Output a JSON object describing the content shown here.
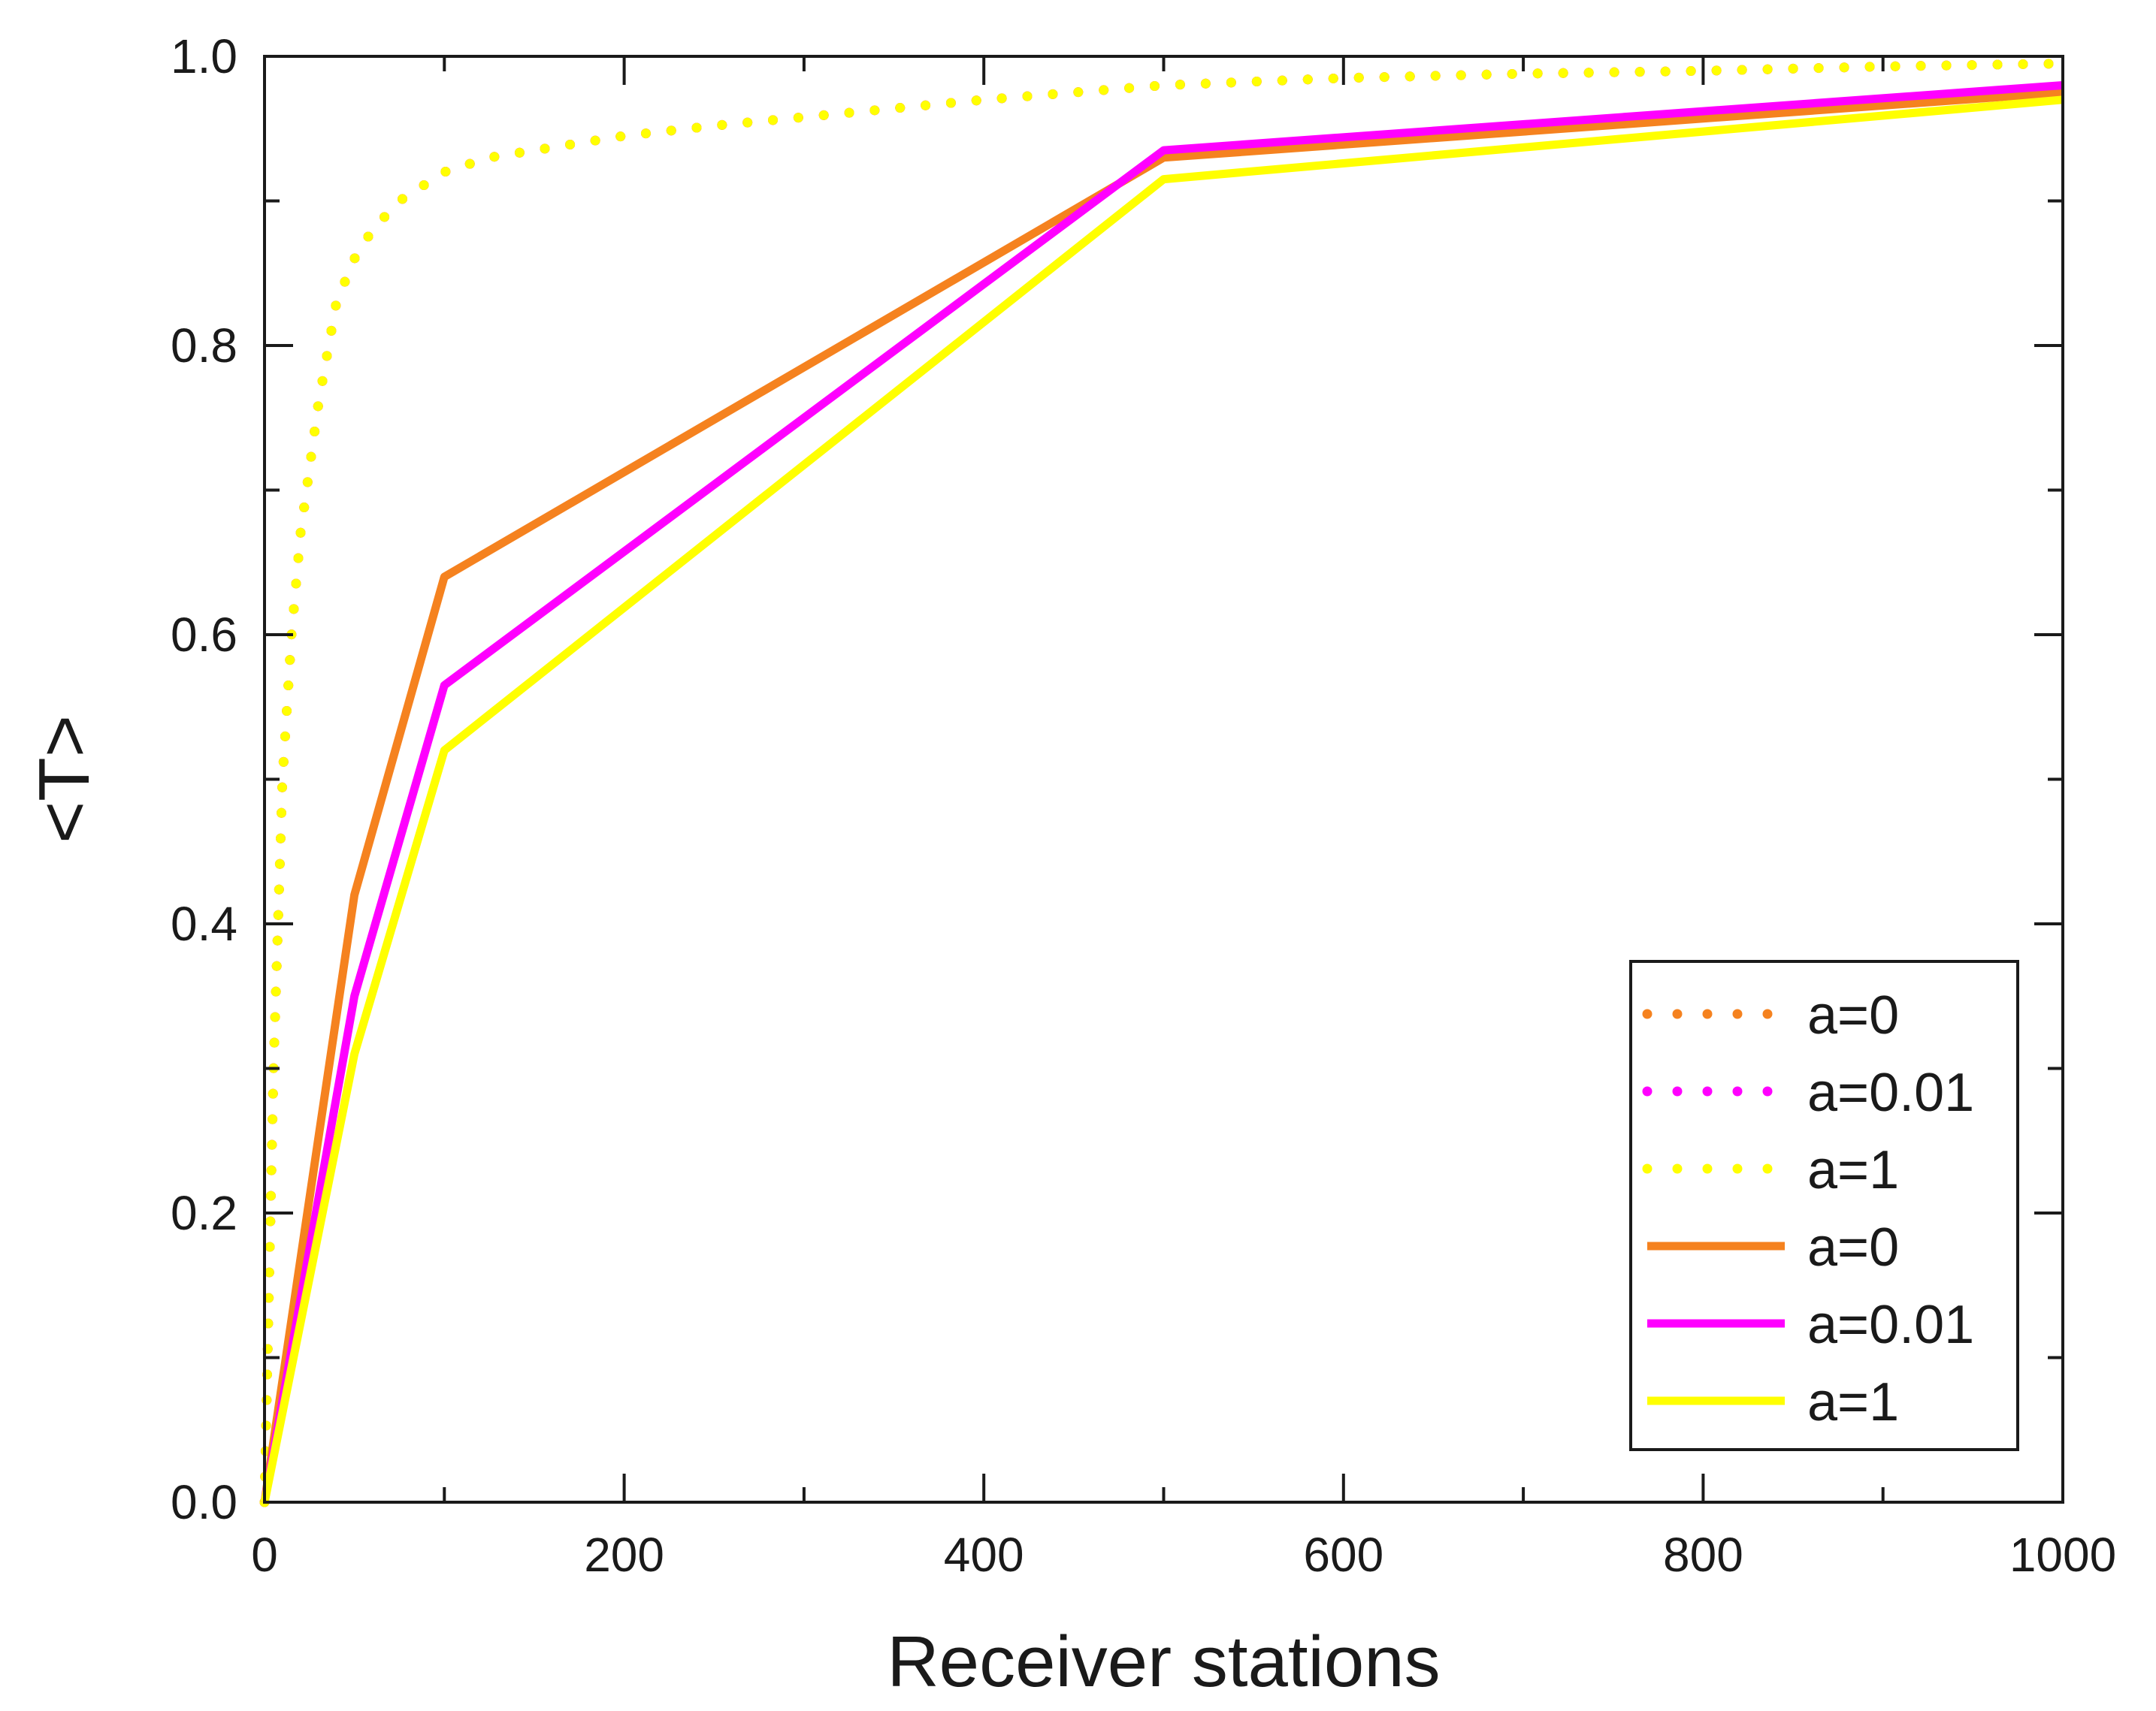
{
  "chart_data": {
    "type": "line",
    "xlabel": "Receiver stations",
    "ylabel": "<T>",
    "xlim": [
      0,
      1000
    ],
    "ylim": [
      0.0,
      1.0
    ],
    "x_ticks": [
      "0",
      "200",
      "400",
      "600",
      "800",
      "1000"
    ],
    "y_ticks": [
      "0.0",
      "0.2",
      "0.4",
      "0.6",
      "0.8",
      "1.0"
    ],
    "grid": false,
    "legend_position": "bottom-right",
    "series": [
      {
        "name": "a=0",
        "style": "dotted",
        "color": "#F5821F",
        "x": [
          0,
          2,
          5,
          10,
          15,
          20,
          30,
          40,
          50,
          60,
          75,
          100,
          125,
          150,
          200,
          250,
          300,
          400,
          500,
          600,
          700,
          800,
          900,
          1000
        ],
        "y": [
          0.0,
          0.12,
          0.3,
          0.5,
          0.6,
          0.67,
          0.76,
          0.83,
          0.86,
          0.88,
          0.9,
          0.92,
          0.93,
          0.935,
          0.945,
          0.952,
          0.958,
          0.97,
          0.98,
          0.985,
          0.988,
          0.99,
          0.993,
          0.995
        ]
      },
      {
        "name": "a=0.01",
        "style": "dotted",
        "color": "#FF00FF",
        "x": [
          0,
          2,
          5,
          10,
          15,
          20,
          30,
          40,
          50,
          60,
          75,
          100,
          125,
          150,
          200,
          250,
          300,
          400,
          500,
          600,
          700,
          800,
          900,
          1000
        ],
        "y": [
          0.0,
          0.12,
          0.3,
          0.5,
          0.6,
          0.67,
          0.76,
          0.83,
          0.86,
          0.88,
          0.9,
          0.92,
          0.93,
          0.935,
          0.945,
          0.952,
          0.958,
          0.97,
          0.98,
          0.985,
          0.988,
          0.99,
          0.993,
          0.995
        ]
      },
      {
        "name": "a=1",
        "style": "dotted",
        "color": "#FFFF00",
        "x": [
          0,
          2,
          5,
          10,
          15,
          20,
          30,
          40,
          50,
          60,
          75,
          100,
          125,
          150,
          200,
          250,
          300,
          400,
          500,
          600,
          700,
          800,
          900,
          1000
        ],
        "y": [
          0.0,
          0.12,
          0.3,
          0.5,
          0.6,
          0.67,
          0.76,
          0.83,
          0.86,
          0.88,
          0.9,
          0.92,
          0.93,
          0.935,
          0.945,
          0.952,
          0.958,
          0.97,
          0.98,
          0.985,
          0.988,
          0.99,
          0.993,
          0.995
        ]
      },
      {
        "name": "a=0",
        "style": "solid",
        "color": "#F5821F",
        "x": [
          0,
          50,
          100,
          500,
          1000
        ],
        "y": [
          0.0,
          0.42,
          0.64,
          0.93,
          0.975
        ]
      },
      {
        "name": "a=0.01",
        "style": "solid",
        "color": "#FF00FF",
        "x": [
          0,
          50,
          100,
          500,
          1000
        ],
        "y": [
          0.0,
          0.35,
          0.565,
          0.935,
          0.98
        ]
      },
      {
        "name": "a=1",
        "style": "solid",
        "color": "#FFFF00",
        "x": [
          0,
          50,
          100,
          500,
          1000
        ],
        "y": [
          0.0,
          0.31,
          0.52,
          0.915,
          0.97
        ]
      }
    ]
  }
}
